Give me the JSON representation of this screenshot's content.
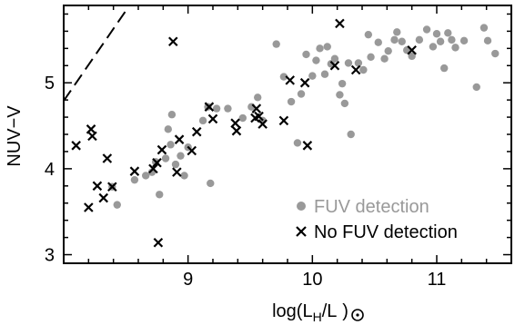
{
  "chart_data": {
    "type": "scatter",
    "title": "",
    "xlabel": "log(L",
    "xlabel_sub1": "H",
    "xlabel_mid": "/L",
    "xlabel_close": ")",
    "ylabel": "NUV−V",
    "xlim": [
      8.0,
      11.6
    ],
    "ylim": [
      2.9,
      5.9
    ],
    "x_ticks": [
      9,
      10,
      11
    ],
    "x_tick_labels": [
      "9",
      "10",
      "11"
    ],
    "y_ticks": [
      3,
      4,
      5
    ],
    "y_tick_labels": [
      "3",
      "4",
      "5"
    ],
    "grid": false,
    "legend_position": "bottom-right",
    "reference_line": {
      "style": "dashed",
      "x": [
        8.0,
        8.52
      ],
      "y": [
        4.79,
        5.88
      ]
    },
    "series": [
      {
        "name": "FUV detection",
        "marker": "circle",
        "color": "#999999",
        "x": [
          8.39,
          8.43,
          8.57,
          8.66,
          8.71,
          8.74,
          8.77,
          8.82,
          8.84,
          8.86,
          8.87,
          8.9,
          8.94,
          8.97,
          9.0,
          9.12,
          9.16,
          9.18,
          9.23,
          9.32,
          9.44,
          9.51,
          9.56,
          9.6,
          9.71,
          9.77,
          9.83,
          9.88,
          9.91,
          9.95,
          10.0,
          10.03,
          10.06,
          10.1,
          10.12,
          10.15,
          10.18,
          10.22,
          10.24,
          10.26,
          10.29,
          10.31,
          10.37,
          10.41,
          10.45,
          10.47,
          10.53,
          10.58,
          10.61,
          10.66,
          10.68,
          10.72,
          10.76,
          10.8,
          10.86,
          10.92,
          10.97,
          11.0,
          11.03,
          11.06,
          11.09,
          11.12,
          11.15,
          11.22,
          11.32,
          11.38,
          11.41,
          11.47
        ],
        "y": [
          3.79,
          3.58,
          3.87,
          3.92,
          3.96,
          4.08,
          3.7,
          4.12,
          4.46,
          4.28,
          4.63,
          4.05,
          4.15,
          3.92,
          4.25,
          4.56,
          4.72,
          3.83,
          4.7,
          4.7,
          4.59,
          4.72,
          4.83,
          4.56,
          5.45,
          5.07,
          4.78,
          4.3,
          4.87,
          5.33,
          5.08,
          5.26,
          5.4,
          5.1,
          5.42,
          5.22,
          5.28,
          4.86,
          4.99,
          4.76,
          5.23,
          4.4,
          5.23,
          5.15,
          5.56,
          5.3,
          5.47,
          5.28,
          5.37,
          5.5,
          5.59,
          5.48,
          5.38,
          5.31,
          5.5,
          5.62,
          5.42,
          5.57,
          5.48,
          5.17,
          5.58,
          5.5,
          5.41,
          5.49,
          4.95,
          5.64,
          5.49,
          5.34
        ]
      },
      {
        "name": "No FUV detection",
        "marker": "x",
        "color": "#000000",
        "x": [
          8.1,
          8.2,
          8.22,
          8.23,
          8.27,
          8.32,
          8.35,
          8.39,
          8.57,
          8.72,
          8.75,
          8.76,
          8.79,
          8.88,
          8.91,
          8.93,
          9.03,
          9.07,
          9.17,
          9.2,
          9.38,
          9.39,
          9.54,
          9.55,
          9.57,
          9.6,
          9.77,
          9.82,
          9.94,
          9.96,
          10.18,
          10.22,
          10.35,
          10.8
        ],
        "y": [
          4.27,
          3.55,
          4.46,
          4.38,
          3.8,
          3.66,
          4.12,
          3.79,
          3.97,
          4.0,
          4.07,
          3.14,
          4.22,
          5.48,
          3.96,
          4.34,
          4.21,
          4.43,
          4.72,
          4.58,
          4.53,
          4.44,
          4.59,
          4.7,
          4.61,
          4.52,
          4.56,
          5.03,
          5.0,
          4.27,
          5.2,
          5.69,
          5.15,
          5.38
        ]
      }
    ]
  }
}
